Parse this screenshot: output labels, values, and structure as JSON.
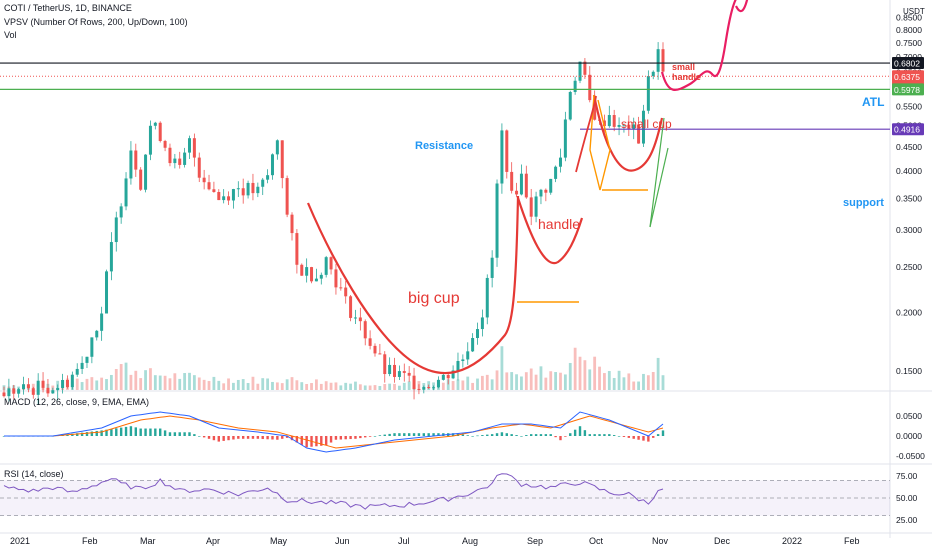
{
  "header": {
    "symbol": "COTI / TetherUS, 1D, BINANCE",
    "vpsv": "VPSV (Number Of Rows, 200, Up/Down, 100)",
    "vol": "Vol",
    "currency": "USDT"
  },
  "panes": {
    "macd_label": "MACD (12, 26, close, 9, EMA, EMA)",
    "rsi_label": "RSI (14, close)"
  },
  "annotations": {
    "resistance": "Resistance",
    "big_cup": "big cup",
    "handle": "handle",
    "small_cup": "small cup",
    "small_handle_1": "small",
    "small_handle_2": "handle",
    "atl": "ATL",
    "support": "support"
  },
  "colors": {
    "up": "#26a69a",
    "down": "#ef5350",
    "annotation_red": "#e53935",
    "resistance_green": "#4caf50",
    "support_purple": "#673ab7",
    "atl_black": "#131722",
    "label_blue": "#2196f3",
    "orange": "#ff9800",
    "macd_line": "#2962ff",
    "signal_line": "#ff6d00",
    "rsi_line": "#7e57c2"
  },
  "chart_data": {
    "type": "candlestick",
    "price_axis": {
      "scale": "log",
      "ticks": [
        "0.8500",
        "0.8000",
        "0.7500",
        "0.7000",
        "0.6500",
        "0.5500",
        "0.5000",
        "0.4500",
        "0.4000",
        "0.3500",
        "0.3000",
        "0.2500",
        "0.2000",
        "0.1500"
      ]
    },
    "time_axis": [
      "2021",
      "Feb",
      "Mar",
      "Apr",
      "May",
      "Jun",
      "Jul",
      "Aug",
      "Sep",
      "Oct",
      "Nov",
      "Dec",
      "2022",
      "Feb"
    ],
    "price_labels": [
      {
        "value": "0.6802",
        "style": "black"
      },
      {
        "value": "0.6375",
        "style": "red"
      },
      {
        "value": "09:51:44",
        "style": "red"
      },
      {
        "value": "0.5978",
        "style": "green"
      },
      {
        "value": "0.4916",
        "style": "purple"
      }
    ],
    "levels": {
      "atl": 0.6802,
      "last": 0.6375,
      "resistance": 0.5978,
      "support": 0.4916
    },
    "price_path": [
      [
        0,
        0.135
      ],
      [
        6,
        0.138
      ],
      [
        12,
        0.14
      ],
      [
        16,
        0.155
      ],
      [
        20,
        0.2
      ],
      [
        24,
        0.35
      ],
      [
        26,
        0.45
      ],
      [
        28,
        0.38
      ],
      [
        30,
        0.5
      ],
      [
        32,
        0.48
      ],
      [
        34,
        0.43
      ],
      [
        36,
        0.4
      ],
      [
        38,
        0.46
      ],
      [
        40,
        0.4
      ],
      [
        44,
        0.35
      ],
      [
        48,
        0.37
      ],
      [
        52,
        0.36
      ],
      [
        54,
        0.39
      ],
      [
        56,
        0.47
      ],
      [
        58,
        0.32
      ],
      [
        60,
        0.25
      ],
      [
        64,
        0.24
      ],
      [
        66,
        0.26
      ],
      [
        70,
        0.21
      ],
      [
        74,
        0.18
      ],
      [
        78,
        0.15
      ],
      [
        82,
        0.145
      ],
      [
        86,
        0.14
      ],
      [
        90,
        0.145
      ],
      [
        94,
        0.16
      ],
      [
        98,
        0.2
      ],
      [
        100,
        0.26
      ],
      [
        102,
        0.48
      ],
      [
        104,
        0.35
      ],
      [
        106,
        0.39
      ],
      [
        108,
        0.33
      ],
      [
        110,
        0.36
      ],
      [
        112,
        0.38
      ],
      [
        114,
        0.43
      ],
      [
        116,
        0.6
      ],
      [
        118,
        0.68
      ],
      [
        120,
        0.56
      ],
      [
        122,
        0.5
      ],
      [
        124,
        0.53
      ],
      [
        126,
        0.49
      ],
      [
        128,
        0.5
      ],
      [
        130,
        0.47
      ],
      [
        132,
        0.62
      ],
      [
        134,
        0.72
      ],
      [
        135,
        0.64
      ]
    ],
    "volume_path": [
      [
        0,
        1.2
      ],
      [
        10,
        1.5
      ],
      [
        20,
        3.5
      ],
      [
        24,
        6
      ],
      [
        30,
        4
      ],
      [
        40,
        3
      ],
      [
        50,
        2.5
      ],
      [
        58,
        2.6
      ],
      [
        66,
        2
      ],
      [
        80,
        1.5
      ],
      [
        92,
        2
      ],
      [
        100,
        3.5
      ],
      [
        102,
        8
      ],
      [
        106,
        4
      ],
      [
        114,
        5
      ],
      [
        118,
        9
      ],
      [
        124,
        4
      ],
      [
        130,
        3
      ],
      [
        134,
        6
      ],
      [
        135,
        3
      ]
    ],
    "forecast_path": [
      [
        0.63,
        0.73
      ],
      [
        0.75,
        0.7
      ],
      [
        0.85,
        0.74
      ],
      [
        0.9,
        0.73
      ],
      [
        0.93,
        0.8
      ],
      [
        0.95,
        0.88
      ]
    ],
    "macd": {
      "axis_ticks": [
        "0.0500",
        "0.0000",
        "-0.0500"
      ],
      "macd_path": [
        [
          0,
          0.0
        ],
        [
          10,
          0.0
        ],
        [
          20,
          0.02
        ],
        [
          26,
          0.05
        ],
        [
          32,
          0.06
        ],
        [
          38,
          0.05
        ],
        [
          44,
          0.02
        ],
        [
          52,
          0.01
        ],
        [
          58,
          0.0
        ],
        [
          62,
          -0.03
        ],
        [
          66,
          -0.04
        ],
        [
          72,
          -0.03
        ],
        [
          80,
          -0.01
        ],
        [
          88,
          0.0
        ],
        [
          96,
          0.01
        ],
        [
          102,
          0.03
        ],
        [
          108,
          0.03
        ],
        [
          114,
          0.02
        ],
        [
          118,
          0.06
        ],
        [
          124,
          0.04
        ],
        [
          128,
          0.02
        ],
        [
          132,
          0.0
        ],
        [
          135,
          0.03
        ]
      ],
      "signal_path": [
        [
          0,
          0.0
        ],
        [
          10,
          0.0
        ],
        [
          20,
          0.01
        ],
        [
          28,
          0.04
        ],
        [
          34,
          0.05
        ],
        [
          40,
          0.04
        ],
        [
          48,
          0.02
        ],
        [
          56,
          0.01
        ],
        [
          62,
          -0.01
        ],
        [
          68,
          -0.03
        ],
        [
          76,
          -0.02
        ],
        [
          84,
          -0.01
        ],
        [
          92,
          0.0
        ],
        [
          100,
          0.02
        ],
        [
          106,
          0.03
        ],
        [
          112,
          0.02
        ],
        [
          120,
          0.05
        ],
        [
          126,
          0.03
        ],
        [
          132,
          0.01
        ],
        [
          135,
          0.02
        ]
      ]
    },
    "rsi": {
      "axis_ticks": [
        "75.00",
        "50.00",
        "25.00"
      ],
      "levels": [
        70,
        50,
        30
      ],
      "rsi_path": [
        [
          0,
          62
        ],
        [
          6,
          58
        ],
        [
          10,
          62
        ],
        [
          14,
          56
        ],
        [
          18,
          64
        ],
        [
          22,
          72
        ],
        [
          24,
          66
        ],
        [
          28,
          60
        ],
        [
          32,
          70
        ],
        [
          36,
          58
        ],
        [
          42,
          60
        ],
        [
          48,
          54
        ],
        [
          54,
          62
        ],
        [
          58,
          48
        ],
        [
          62,
          46
        ],
        [
          68,
          44
        ],
        [
          74,
          40
        ],
        [
          82,
          42
        ],
        [
          90,
          48
        ],
        [
          96,
          56
        ],
        [
          100,
          66
        ],
        [
          102,
          80
        ],
        [
          106,
          66
        ],
        [
          112,
          62
        ],
        [
          118,
          68
        ],
        [
          124,
          56
        ],
        [
          128,
          54
        ],
        [
          132,
          44
        ],
        [
          134,
          60
        ],
        [
          135,
          58
        ]
      ]
    }
  }
}
